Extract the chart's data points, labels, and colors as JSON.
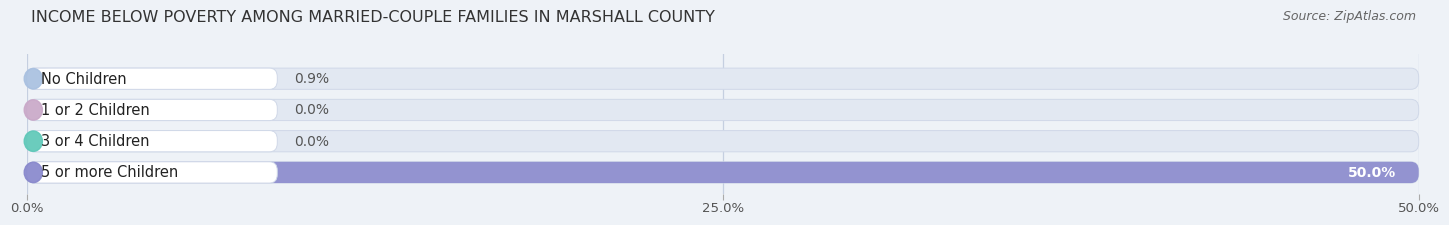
{
  "title": "INCOME BELOW POVERTY AMONG MARRIED-COUPLE FAMILIES IN MARSHALL COUNTY",
  "source": "Source: ZipAtlas.com",
  "categories": [
    "No Children",
    "1 or 2 Children",
    "3 or 4 Children",
    "5 or more Children"
  ],
  "values": [
    0.9,
    0.0,
    0.0,
    50.0
  ],
  "bar_colors": [
    "#a8c0e0",
    "#c9a8c8",
    "#5ec8b8",
    "#8888cc"
  ],
  "value_labels": [
    "0.9%",
    "0.0%",
    "0.0%",
    "50.0%"
  ],
  "xlim": [
    0,
    50
  ],
  "xticks": [
    0,
    25,
    50
  ],
  "xtick_labels": [
    "0.0%",
    "25.0%",
    "50.0%"
  ],
  "background_color": "#eef2f7",
  "bar_background_color": "#e2e8f2",
  "bar_bg_edge_color": "#d0d8e8",
  "title_fontsize": 11.5,
  "source_fontsize": 9,
  "label_fontsize": 10.5,
  "value_fontsize": 10,
  "tick_fontsize": 9.5
}
